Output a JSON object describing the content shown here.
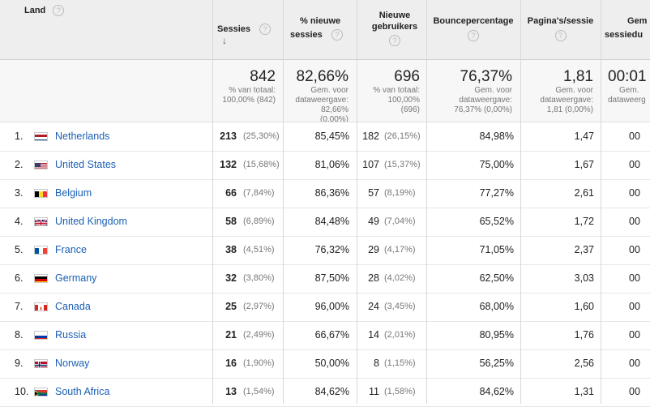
{
  "header": {
    "land": "Land",
    "sessies": "Sessies",
    "nieuwe_sessies_1": "% nieuwe",
    "nieuwe_sessies_2": "sessies",
    "nieuwe_gebruikers_1": "Nieuwe",
    "nieuwe_gebruikers_2": "gebruikers",
    "bounce": "Bouncepercentage",
    "paginas": "Pagina's/sessie",
    "duur_1": "Gem",
    "duur_2": "sessiedu",
    "help_glyph": "?",
    "sort_glyph": "↓"
  },
  "totals": {
    "sessies": "842",
    "sessies_sub": [
      "% van totaal:",
      "100,00% (842)"
    ],
    "nieuwe_sessies": "82,66%",
    "nieuwe_sessies_sub": [
      "Gem. voor",
      "dataweergave:",
      "82,66%",
      "(0,00%)"
    ],
    "nieuwe_gebruikers": "696",
    "nieuwe_gebruikers_sub": [
      "% van totaal:",
      "100,00%",
      "(696)"
    ],
    "bounce": "76,37%",
    "bounce_sub": [
      "Gem. voor",
      "dataweergave:",
      "76,37% (0,00%)"
    ],
    "paginas": "1,81",
    "paginas_sub": [
      "Gem. voor",
      "dataweergave:",
      "1,81 (0,00%)"
    ],
    "duur": "00:01",
    "duur_sub": [
      "Gem.",
      "dataweerg"
    ]
  },
  "rows": [
    {
      "idx": "1.",
      "country": "Netherlands",
      "flag": "nl",
      "sessies": "213",
      "sessies_pct": "(25,30%)",
      "nieuwe": "85,45%",
      "gebruikers": "182",
      "gebruikers_pct": "(26,15%)",
      "bounce": "84,98%",
      "paginas": "1,47",
      "duur": "00"
    },
    {
      "idx": "2.",
      "country": "United States",
      "flag": "us",
      "sessies": "132",
      "sessies_pct": "(15,68%)",
      "nieuwe": "81,06%",
      "gebruikers": "107",
      "gebruikers_pct": "(15,37%)",
      "bounce": "75,00%",
      "paginas": "1,67",
      "duur": "00"
    },
    {
      "idx": "3.",
      "country": "Belgium",
      "flag": "be",
      "sessies": "66",
      "sessies_pct": "(7,84%)",
      "nieuwe": "86,36%",
      "gebruikers": "57",
      "gebruikers_pct": "(8,19%)",
      "bounce": "77,27%",
      "paginas": "2,61",
      "duur": "00"
    },
    {
      "idx": "4.",
      "country": "United Kingdom",
      "flag": "gb",
      "sessies": "58",
      "sessies_pct": "(6,89%)",
      "nieuwe": "84,48%",
      "gebruikers": "49",
      "gebruikers_pct": "(7,04%)",
      "bounce": "65,52%",
      "paginas": "1,72",
      "duur": "00"
    },
    {
      "idx": "5.",
      "country": "France",
      "flag": "fr",
      "sessies": "38",
      "sessies_pct": "(4,51%)",
      "nieuwe": "76,32%",
      "gebruikers": "29",
      "gebruikers_pct": "(4,17%)",
      "bounce": "71,05%",
      "paginas": "2,37",
      "duur": "00"
    },
    {
      "idx": "6.",
      "country": "Germany",
      "flag": "de",
      "sessies": "32",
      "sessies_pct": "(3,80%)",
      "nieuwe": "87,50%",
      "gebruikers": "28",
      "gebruikers_pct": "(4,02%)",
      "bounce": "62,50%",
      "paginas": "3,03",
      "duur": "00"
    },
    {
      "idx": "7.",
      "country": "Canada",
      "flag": "ca",
      "sessies": "25",
      "sessies_pct": "(2,97%)",
      "nieuwe": "96,00%",
      "gebruikers": "24",
      "gebruikers_pct": "(3,45%)",
      "bounce": "68,00%",
      "paginas": "1,60",
      "duur": "00"
    },
    {
      "idx": "8.",
      "country": "Russia",
      "flag": "ru",
      "sessies": "21",
      "sessies_pct": "(2,49%)",
      "nieuwe": "66,67%",
      "gebruikers": "14",
      "gebruikers_pct": "(2,01%)",
      "bounce": "80,95%",
      "paginas": "1,76",
      "duur": "00"
    },
    {
      "idx": "9.",
      "country": "Norway",
      "flag": "no",
      "sessies": "16",
      "sessies_pct": "(1,90%)",
      "nieuwe": "50,00%",
      "gebruikers": "8",
      "gebruikers_pct": "(1,15%)",
      "bounce": "56,25%",
      "paginas": "2,56",
      "duur": "00"
    },
    {
      "idx": "10.",
      "country": "South Africa",
      "flag": "za",
      "sessies": "13",
      "sessies_pct": "(1,54%)",
      "nieuwe": "84,62%",
      "gebruikers": "11",
      "gebruikers_pct": "(1,58%)",
      "bounce": "84,62%",
      "paginas": "1,31",
      "duur": "00"
    }
  ],
  "colors": {
    "link": "#1a5fb4",
    "header_bg": "#eeeeee",
    "totals_bg": "#f7f7f7"
  }
}
